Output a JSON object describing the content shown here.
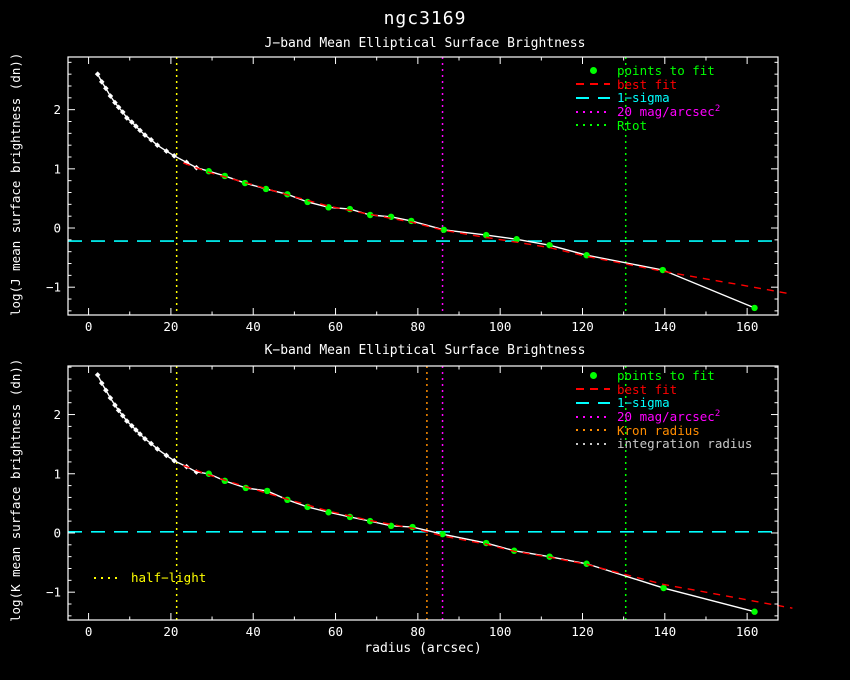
{
  "figure": {
    "title": "ngc3169",
    "xlabel": "radius (arcsec)",
    "background": "#000000",
    "frame_color": "#ffffff"
  },
  "chart_data": [
    {
      "type": "line",
      "title": "J−band Mean Elliptical Surface Brightness",
      "ylabel": "log(J mean surface brightness (dn))",
      "xlim": [
        -5,
        167.5
      ],
      "ylim": [
        -1.47,
        2.89
      ],
      "xticks": [
        0,
        20,
        40,
        60,
        80,
        100,
        120,
        140,
        160
      ],
      "yticks": [
        -1,
        0,
        1,
        2
      ],
      "xminor": 10,
      "yminor": 0.2,
      "grid": false,
      "legend_position": "upper right",
      "series": [
        {
          "name": "measured profile",
          "color": "#ffffff",
          "marker": "diamond",
          "points": [
            [
              2.2,
              2.6
            ],
            [
              3.2,
              2.47
            ],
            [
              4.2,
              2.36
            ],
            [
              5.3,
              2.23
            ],
            [
              6.4,
              2.12
            ],
            [
              7.3,
              2.04
            ],
            [
              8.3,
              1.96
            ],
            [
              9.3,
              1.86
            ],
            [
              10.5,
              1.79
            ],
            [
              11.5,
              1.72
            ],
            [
              12.5,
              1.65
            ],
            [
              13.7,
              1.57
            ],
            [
              15.2,
              1.49
            ],
            [
              16.7,
              1.4
            ],
            [
              18.9,
              1.3
            ],
            [
              20.8,
              1.22
            ],
            [
              23.8,
              1.11
            ],
            [
              26.2,
              1.02
            ],
            [
              29.2,
              0.96
            ],
            [
              33.1,
              0.88
            ],
            [
              38.0,
              0.76
            ],
            [
              43.1,
              0.66
            ],
            [
              48.3,
              0.57
            ],
            [
              53.2,
              0.44
            ],
            [
              58.3,
              0.35
            ],
            [
              63.5,
              0.32
            ],
            [
              68.4,
              0.22
            ],
            [
              73.5,
              0.19
            ],
            [
              78.4,
              0.12
            ],
            [
              86.3,
              -0.03
            ],
            [
              96.6,
              -0.12
            ],
            [
              104,
              -0.19
            ],
            [
              112,
              -0.29
            ],
            [
              121,
              -0.46
            ],
            [
              139.5,
              -0.71
            ],
            [
              161.8,
              -1.35
            ]
          ]
        },
        {
          "name": "points to fit",
          "color": "#00ff00",
          "marker": "circle",
          "markers_only": true,
          "points": [
            [
              29.2,
              0.96
            ],
            [
              33.1,
              0.88
            ],
            [
              38.0,
              0.76
            ],
            [
              43.1,
              0.66
            ],
            [
              48.3,
              0.57
            ],
            [
              53.2,
              0.44
            ],
            [
              58.3,
              0.35
            ],
            [
              63.5,
              0.32
            ],
            [
              68.4,
              0.22
            ],
            [
              73.5,
              0.19
            ],
            [
              78.4,
              0.12
            ],
            [
              86.3,
              -0.03
            ],
            [
              96.6,
              -0.12
            ],
            [
              104,
              -0.19
            ],
            [
              112,
              -0.29
            ],
            [
              121,
              -0.46
            ],
            [
              139.5,
              -0.71
            ],
            [
              161.8,
              -1.35
            ]
          ]
        },
        {
          "name": "best fit",
          "color": "#ff0000",
          "dash": "7 6",
          "points": [
            [
              23,
              1.1
            ],
            [
              29.2,
              0.94
            ],
            [
              38,
              0.77
            ],
            [
              48.3,
              0.56
            ],
            [
              58.3,
              0.37
            ],
            [
              68.4,
              0.23
            ],
            [
              78.4,
              0.1
            ],
            [
              86.3,
              -0.04
            ],
            [
              96.6,
              -0.16
            ],
            [
              104,
              -0.24
            ],
            [
              112,
              -0.33
            ],
            [
              121,
              -0.48
            ],
            [
              139.5,
              -0.73
            ],
            [
              150,
              -0.86
            ],
            [
              160,
              -0.98
            ],
            [
              171,
              -1.12
            ]
          ]
        }
      ],
      "hlines": [
        {
          "name": "1−sigma",
          "y": -0.22,
          "color": "#00ffff",
          "dash": "14 9"
        }
      ],
      "vlines": [
        {
          "name": "half−light",
          "x": 21.4,
          "color": "#ffff00",
          "dash": "2 4"
        },
        {
          "name": "20 mag/arcsec2",
          "x": 86,
          "color": "#ff00ff",
          "dash": "2 4"
        },
        {
          "name": "Rtot",
          "x": 130.5,
          "color": "#00ff00",
          "dash": "2 4"
        }
      ],
      "legend": [
        {
          "label": "points to fit",
          "color": "#00ff00",
          "sample": "marker"
        },
        {
          "label": "best fit",
          "color": "#ff0000",
          "sample": "dash"
        },
        {
          "label": "1−sigma",
          "color": "#00ffff",
          "sample": "longdash"
        },
        {
          "label": "20 mag/arcsec",
          "sup": "2",
          "color": "#ff00ff",
          "sample": "dots"
        },
        {
          "label": "Rtot",
          "color": "#00ff00",
          "sample": "dots"
        }
      ]
    },
    {
      "type": "line",
      "title": "K−band Mean Elliptical Surface Brightness",
      "ylabel": "log(K mean surface brightness (dn))",
      "xlim": [
        -5,
        167.5
      ],
      "ylim": [
        -1.47,
        2.82
      ],
      "xticks": [
        0,
        20,
        40,
        60,
        80,
        100,
        120,
        140,
        160
      ],
      "yticks": [
        -1,
        0,
        1,
        2
      ],
      "xminor": 10,
      "yminor": 0.2,
      "grid": false,
      "legend_position": "upper right",
      "series": [
        {
          "name": "measured profile",
          "color": "#ffffff",
          "marker": "diamond",
          "points": [
            [
              2.2,
              2.67
            ],
            [
              3.2,
              2.53
            ],
            [
              4.2,
              2.41
            ],
            [
              5.3,
              2.28
            ],
            [
              6.4,
              2.16
            ],
            [
              7.3,
              2.07
            ],
            [
              8.3,
              1.98
            ],
            [
              9.3,
              1.89
            ],
            [
              10.5,
              1.81
            ],
            [
              11.5,
              1.74
            ],
            [
              12.5,
              1.67
            ],
            [
              13.7,
              1.59
            ],
            [
              15.2,
              1.51
            ],
            [
              16.7,
              1.42
            ],
            [
              18.9,
              1.31
            ],
            [
              20.8,
              1.22
            ],
            [
              23.8,
              1.12
            ],
            [
              26.2,
              1.03
            ],
            [
              29.2,
              1.0
            ],
            [
              33.1,
              0.88
            ],
            [
              38.2,
              0.76
            ],
            [
              43.4,
              0.71
            ],
            [
              48.3,
              0.56
            ],
            [
              53.2,
              0.44
            ],
            [
              58.3,
              0.35
            ],
            [
              63.5,
              0.27
            ],
            [
              68.4,
              0.2
            ],
            [
              73.5,
              0.12
            ],
            [
              78.7,
              0.1
            ],
            [
              86.0,
              -0.02
            ],
            [
              96.6,
              -0.17
            ],
            [
              103.4,
              -0.3
            ],
            [
              112,
              -0.4
            ],
            [
              121,
              -0.52
            ],
            [
              139.7,
              -0.93
            ],
            [
              161.8,
              -1.33
            ]
          ]
        },
        {
          "name": "points to fit",
          "color": "#00ff00",
          "marker": "circle",
          "markers_only": true,
          "points": [
            [
              29.2,
              1.0
            ],
            [
              33.1,
              0.88
            ],
            [
              38.2,
              0.76
            ],
            [
              43.4,
              0.71
            ],
            [
              48.3,
              0.56
            ],
            [
              53.2,
              0.44
            ],
            [
              58.3,
              0.35
            ],
            [
              63.5,
              0.27
            ],
            [
              68.4,
              0.2
            ],
            [
              73.5,
              0.12
            ],
            [
              78.7,
              0.1
            ],
            [
              86.0,
              -0.02
            ],
            [
              96.6,
              -0.17
            ],
            [
              103.4,
              -0.3
            ],
            [
              112,
              -0.4
            ],
            [
              121,
              -0.52
            ],
            [
              139.7,
              -0.93
            ],
            [
              161.8,
              -1.33
            ]
          ]
        },
        {
          "name": "best fit",
          "color": "#ff0000",
          "dash": "7 6",
          "points": [
            [
              23,
              1.14
            ],
            [
              29.2,
              0.98
            ],
            [
              38.2,
              0.78
            ],
            [
              48.3,
              0.57
            ],
            [
              58.3,
              0.37
            ],
            [
              68.4,
              0.21
            ],
            [
              78.7,
              0.08
            ],
            [
              86,
              -0.05
            ],
            [
              96.6,
              -0.19
            ],
            [
              103.4,
              -0.31
            ],
            [
              112,
              -0.41
            ],
            [
              121,
              -0.53
            ],
            [
              139.7,
              -0.87
            ],
            [
              150,
              -1.0
            ],
            [
              160,
              -1.13
            ],
            [
              171,
              -1.27
            ]
          ]
        }
      ],
      "hlines": [
        {
          "name": "1−sigma",
          "y": 0.02,
          "color": "#00ffff",
          "dash": "14 9"
        }
      ],
      "vlines": [
        {
          "name": "half−light",
          "x": 21.4,
          "color": "#ffff00",
          "dash": "2 4"
        },
        {
          "name": "Kron radius",
          "x": 82.2,
          "color": "#ff8c00",
          "dash": "2 4"
        },
        {
          "name": "20 mag/arcsec2",
          "x": 86,
          "color": "#ff00ff",
          "dash": "2 4"
        },
        {
          "name": "integration radius",
          "x": 130.5,
          "color": "#00ff00",
          "dash": "2 4"
        }
      ],
      "legend": [
        {
          "label": "points to fit",
          "color": "#00ff00",
          "sample": "marker"
        },
        {
          "label": "best fit",
          "color": "#ff0000",
          "sample": "dash"
        },
        {
          "label": "1−sigma",
          "color": "#00ffff",
          "sample": "longdash"
        },
        {
          "label": "20 mag/arcsec",
          "sup": "2",
          "color": "#ff00ff",
          "sample": "dots"
        },
        {
          "label": "Kron radius",
          "color": "#ff8c00",
          "sample": "dots"
        },
        {
          "label": "integration radius",
          "color": "#c8c8c8",
          "sample": "dots"
        }
      ],
      "annotation": {
        "text": "half−light",
        "color": "#ffff00",
        "sample": "dots"
      }
    }
  ]
}
